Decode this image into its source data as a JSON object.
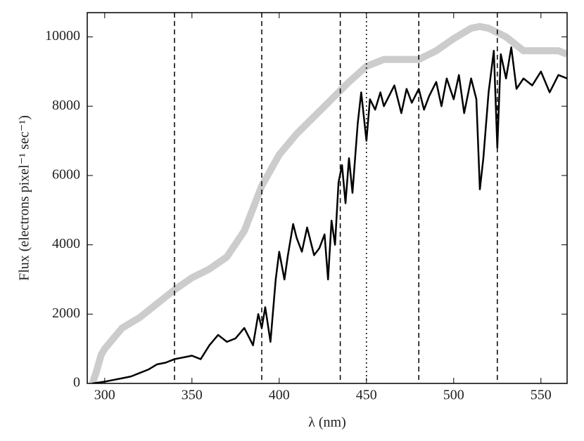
{
  "chart_data": {
    "type": "line",
    "xlabel": "λ (nm)",
    "ylabel": "Flux (electrons pixel⁻¹ sec⁻¹)",
    "xlim": [
      290,
      565
    ],
    "ylim": [
      0,
      10700
    ],
    "xticks": [
      300,
      350,
      400,
      450,
      500,
      550
    ],
    "yticks": [
      0,
      2000,
      4000,
      6000,
      8000,
      10000
    ],
    "series": [
      {
        "color": "#cccccc",
        "x": [
          293,
          295,
          298,
          300,
          305,
          310,
          320,
          330,
          340,
          350,
          360,
          370,
          380,
          390,
          400,
          410,
          420,
          430,
          440,
          450,
          460,
          470,
          480,
          490,
          500,
          510,
          515,
          520,
          530,
          540,
          550,
          560,
          565
        ],
        "values": [
          0,
          300,
          830,
          1000,
          1300,
          1600,
          1900,
          2300,
          2700,
          3050,
          3300,
          3650,
          4400,
          5700,
          6600,
          7200,
          7700,
          8200,
          8700,
          9150,
          9350,
          9350,
          9350,
          9600,
          9950,
          10250,
          10300,
          10250,
          10000,
          9600,
          9600,
          9600,
          9500
        ]
      },
      {
        "color": "#000000",
        "x": [
          293,
          300,
          305,
          310,
          315,
          320,
          325,
          330,
          335,
          340,
          345,
          350,
          355,
          360,
          365,
          370,
          375,
          380,
          385,
          388,
          390,
          392,
          395,
          398,
          400,
          403,
          405,
          408,
          410,
          413,
          416,
          420,
          423,
          426,
          428,
          430,
          432,
          434,
          436,
          438,
          440,
          442,
          445,
          447,
          450,
          452,
          455,
          458,
          460,
          463,
          466,
          470,
          473,
          476,
          480,
          483,
          486,
          490,
          493,
          496,
          500,
          503,
          506,
          510,
          513,
          515,
          517,
          520,
          523,
          525,
          527,
          530,
          533,
          536,
          540,
          545,
          550,
          555,
          560,
          565
        ],
        "values": [
          0,
          50,
          100,
          150,
          200,
          300,
          400,
          550,
          600,
          700,
          750,
          800,
          700,
          1100,
          1400,
          1200,
          1300,
          1600,
          1100,
          2000,
          1600,
          2200,
          1200,
          3000,
          3800,
          3000,
          3700,
          4600,
          4200,
          3800,
          4500,
          3700,
          3900,
          4300,
          3000,
          4700,
          4000,
          5800,
          6300,
          5200,
          6500,
          5500,
          7500,
          8400,
          7000,
          8200,
          7900,
          8400,
          8000,
          8300,
          8600,
          7800,
          8500,
          8100,
          8500,
          7900,
          8300,
          8700,
          8000,
          8800,
          8200,
          8900,
          7800,
          8800,
          8200,
          5600,
          6500,
          8400,
          9600,
          6800,
          9500,
          8800,
          9700,
          8500,
          8800,
          8600,
          9000,
          8400,
          8900,
          8800
        ]
      }
    ],
    "vlines": [
      {
        "x": 340,
        "style": "dashed"
      },
      {
        "x": 390,
        "style": "dashed"
      },
      {
        "x": 435,
        "style": "dashed"
      },
      {
        "x": 450,
        "style": "dotted"
      },
      {
        "x": 480,
        "style": "dashed"
      },
      {
        "x": 525,
        "style": "dashed"
      }
    ]
  }
}
